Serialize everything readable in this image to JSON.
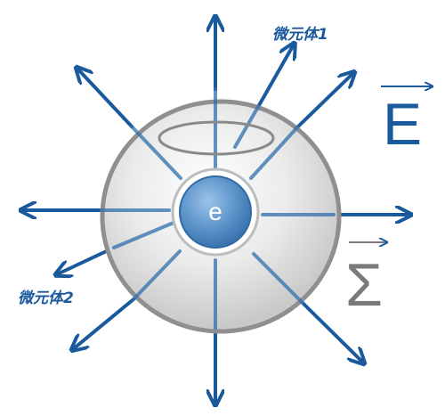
{
  "charge_label": "e",
  "element1_label": "微元体1",
  "element2_label": "微元体2",
  "field_symbol": "E",
  "surface_symbol": "Σ",
  "colors": {
    "field_lines": "#1a5a9c",
    "sphere_rim": "#8f8f8f",
    "charge_fill": "#5b93c9",
    "surface_symbol": "#7a7a7a"
  }
}
